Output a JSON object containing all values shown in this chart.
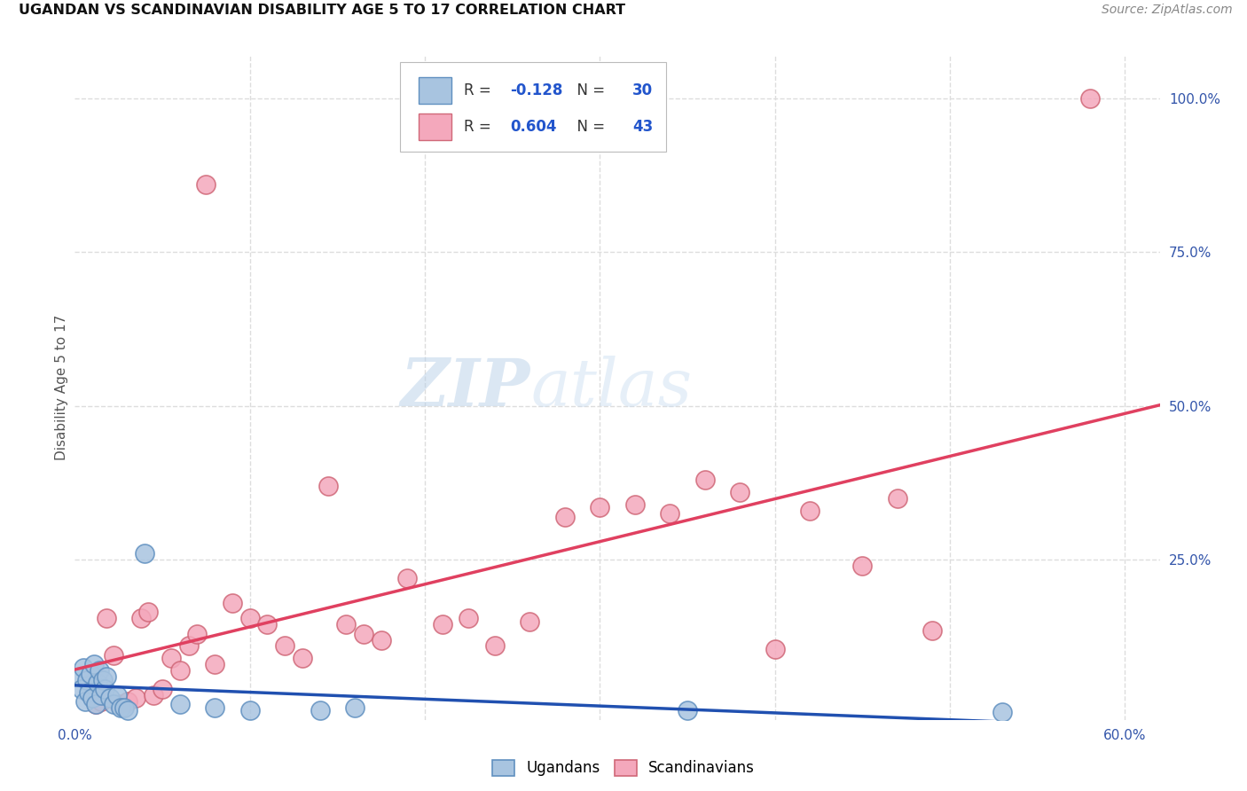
{
  "title": "UGANDAN VS SCANDINAVIAN DISABILITY AGE 5 TO 17 CORRELATION CHART",
  "source": "Source: ZipAtlas.com",
  "ylabel": "Disability Age 5 to 17",
  "xlim": [
    0.0,
    0.62
  ],
  "ylim": [
    -0.01,
    1.07
  ],
  "xtick_vals": [
    0.0,
    0.1,
    0.2,
    0.3,
    0.4,
    0.5,
    0.6
  ],
  "xticklabels": [
    "0.0%",
    "",
    "",
    "",
    "",
    "",
    "60.0%"
  ],
  "yticks_right": [
    0.25,
    0.5,
    0.75,
    1.0
  ],
  "yticklabels_right": [
    "25.0%",
    "50.0%",
    "75.0%",
    "100.0%"
  ],
  "ugandan_color": "#A8C4E0",
  "ugandan_edge": "#6090C0",
  "scandinavian_color": "#F4A8BC",
  "scandinavian_edge": "#D06878",
  "ugandan_R": -0.128,
  "ugandan_N": 30,
  "scandinavian_R": 0.604,
  "scandinavian_N": 43,
  "watermark_zip": "ZIP",
  "watermark_atlas": "atlas",
  "legend_label_ugandan": "Ugandans",
  "legend_label_scandinavian": "Scandinavians",
  "line_ugandan_color": "#2050B0",
  "line_scandinavian_color": "#E04060",
  "grid_color": "#DDDDDD",
  "background_color": "#FFFFFF",
  "ugandan_x": [
    0.003,
    0.004,
    0.005,
    0.006,
    0.007,
    0.008,
    0.009,
    0.01,
    0.011,
    0.012,
    0.013,
    0.014,
    0.015,
    0.016,
    0.017,
    0.018,
    0.02,
    0.022,
    0.024,
    0.026,
    0.028,
    0.03,
    0.04,
    0.06,
    0.08,
    0.1,
    0.14,
    0.16,
    0.35,
    0.53
  ],
  "ugandan_y": [
    0.06,
    0.04,
    0.075,
    0.02,
    0.055,
    0.035,
    0.065,
    0.025,
    0.08,
    0.015,
    0.05,
    0.07,
    0.03,
    0.055,
    0.04,
    0.06,
    0.025,
    0.015,
    0.03,
    0.01,
    0.01,
    0.005,
    0.26,
    0.015,
    0.01,
    0.005,
    0.005,
    0.01,
    0.005,
    0.003
  ],
  "scandinavian_x": [
    0.012,
    0.015,
    0.018,
    0.022,
    0.025,
    0.03,
    0.035,
    0.038,
    0.042,
    0.045,
    0.05,
    0.055,
    0.06,
    0.065,
    0.07,
    0.075,
    0.08,
    0.09,
    0.1,
    0.11,
    0.12,
    0.13,
    0.145,
    0.155,
    0.165,
    0.175,
    0.19,
    0.21,
    0.225,
    0.24,
    0.26,
    0.28,
    0.3,
    0.32,
    0.34,
    0.36,
    0.38,
    0.4,
    0.42,
    0.45,
    0.47,
    0.49,
    0.58
  ],
  "scandinavian_y": [
    0.015,
    0.02,
    0.155,
    0.095,
    0.015,
    0.02,
    0.025,
    0.155,
    0.165,
    0.03,
    0.04,
    0.09,
    0.07,
    0.11,
    0.13,
    0.86,
    0.08,
    0.18,
    0.155,
    0.145,
    0.11,
    0.09,
    0.37,
    0.145,
    0.13,
    0.12,
    0.22,
    0.145,
    0.155,
    0.11,
    0.15,
    0.32,
    0.335,
    0.34,
    0.325,
    0.38,
    0.36,
    0.105,
    0.33,
    0.24,
    0.35,
    0.135,
    1.0
  ]
}
